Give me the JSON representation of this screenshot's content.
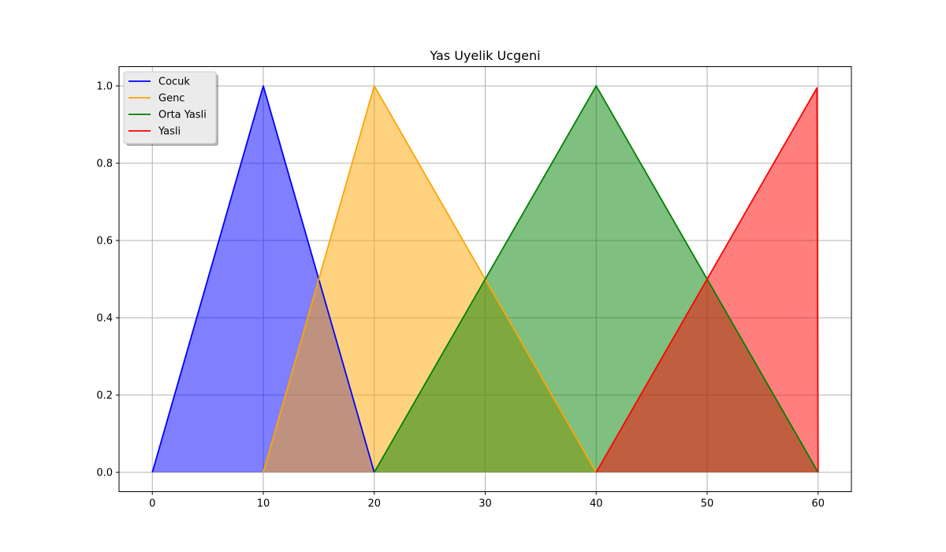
{
  "chart_data": {
    "type": "area",
    "title": "Yas Uyelik Ucgeni",
    "xlabel": "",
    "ylabel": "",
    "xlim": [
      -3,
      63
    ],
    "ylim": [
      -0.05,
      1.05
    ],
    "xticks": [
      0,
      10,
      20,
      30,
      40,
      50,
      60
    ],
    "yticks": [
      0.0,
      0.2,
      0.4,
      0.6,
      0.8,
      1.0
    ],
    "ytick_labels": [
      "0.0",
      "0.2",
      "0.4",
      "0.6",
      "0.8",
      "1.0"
    ],
    "grid": true,
    "legend_position": "top-left",
    "series": [
      {
        "name": "Cocuk",
        "color": "#0000ff",
        "fill": "#0000ff",
        "x": [
          0,
          10,
          20
        ],
        "y": [
          0,
          1,
          0
        ]
      },
      {
        "name": "Genc",
        "color": "#ffa500",
        "fill": "#ffa500",
        "x": [
          10,
          20,
          40
        ],
        "y": [
          0,
          1,
          0
        ]
      },
      {
        "name": "Orta Yasli",
        "color": "#008000",
        "fill": "#008000",
        "x": [
          20,
          40,
          60
        ],
        "y": [
          0,
          1,
          0
        ]
      },
      {
        "name": "Yasli",
        "color": "#ff0000",
        "fill": "#ff0000",
        "x": [
          40,
          59.9,
          60
        ],
        "y": [
          0,
          0.995,
          0
        ]
      }
    ]
  }
}
